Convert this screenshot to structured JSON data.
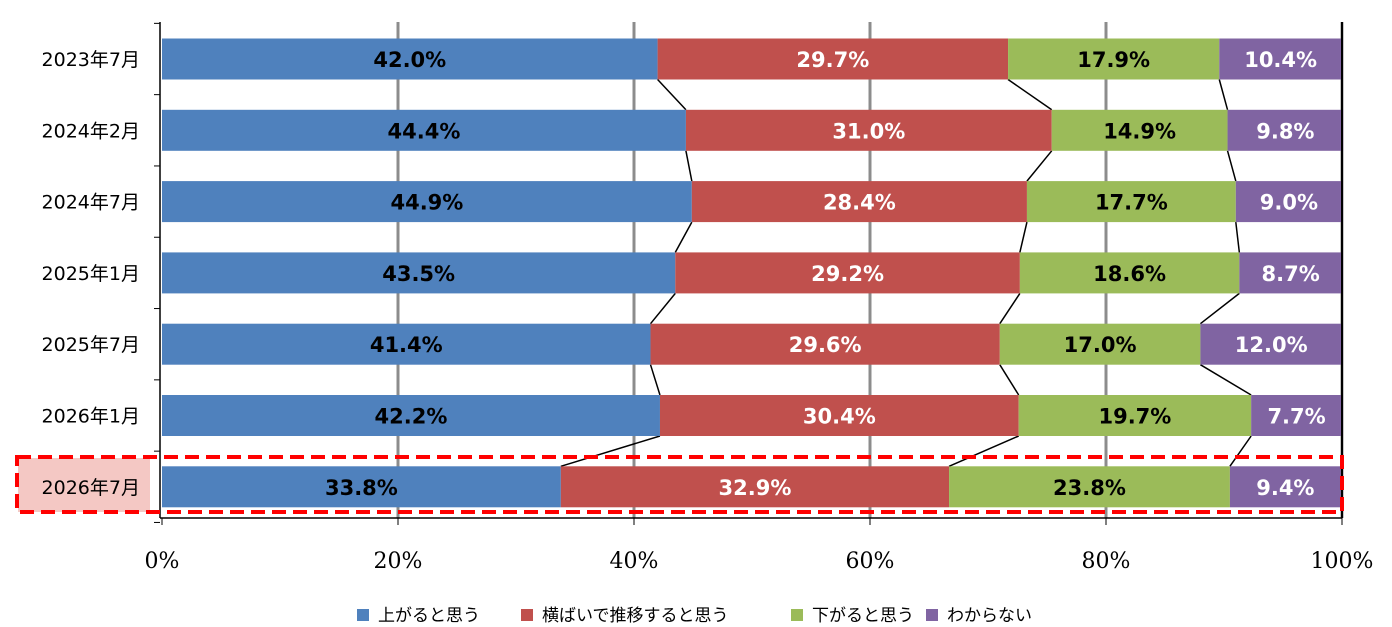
{
  "chart_data": {
    "type": "bar",
    "orientation": "horizontal",
    "stacked": "percent",
    "categories": [
      "2023年7月",
      "2024年2月",
      "2024年7月",
      "2025年1月",
      "2025年7月",
      "2026年1月",
      "2026年7月"
    ],
    "series": [
      {
        "name": "上がると思う",
        "color": "#4f81bd",
        "label_color": "#000000",
        "values": [
          42.0,
          44.4,
          44.9,
          43.5,
          41.4,
          42.2,
          33.8
        ]
      },
      {
        "name": "横ばいで推移すると思う",
        "color": "#c0504d",
        "label_color": "#ffffff",
        "values": [
          29.7,
          31.0,
          28.4,
          29.2,
          29.6,
          30.4,
          32.9
        ]
      },
      {
        "name": "下がると思う",
        "color": "#9bbb59",
        "label_color": "#000000",
        "values": [
          17.9,
          14.9,
          17.7,
          18.6,
          17.0,
          19.7,
          23.8
        ]
      },
      {
        "name": "わからない",
        "color": "#8064a2",
        "label_color": "#ffffff",
        "values": [
          10.4,
          9.8,
          9.0,
          8.7,
          12.0,
          7.7,
          9.4
        ]
      }
    ],
    "xlim": [
      0,
      100
    ],
    "xticks": [
      "0%",
      "20%",
      "40%",
      "60%",
      "80%",
      "100%"
    ],
    "grid": true,
    "series_lines": true,
    "legend_position": "bottom",
    "highlight_category": "2026年7月",
    "highlight_color": "#ff0000"
  }
}
